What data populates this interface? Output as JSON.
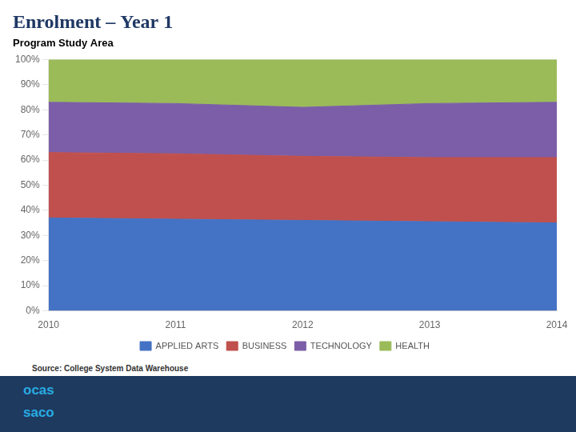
{
  "chart_data": {
    "type": "area",
    "title": "Enrolment – Year 1",
    "subtitle": "Program Study Area",
    "annotations": [
      "Source: College System Data Warehouse",
      "ocas",
      "saco"
    ],
    "x": [
      2010,
      2011,
      2012,
      2013,
      2014
    ],
    "series": [
      {
        "name": "APPLIED ARTS",
        "color": "#4472C4",
        "values": [
          37.0,
          36.5,
          36.0,
          35.5,
          35.0
        ]
      },
      {
        "name": "BUSINESS",
        "color": "#C0504D",
        "values": [
          26.0,
          26.0,
          25.5,
          25.5,
          26.0
        ]
      },
      {
        "name": "TECHNOLOGY",
        "color": "#7B5EA7",
        "values": [
          20.0,
          20.0,
          19.5,
          21.5,
          22.0
        ]
      },
      {
        "name": "HEALTH",
        "color": "#9BBB59",
        "values": [
          17.0,
          17.5,
          19.0,
          17.5,
          17.0
        ]
      }
    ],
    "xlim": [
      2010,
      2014
    ],
    "xticks": [
      2010,
      2011,
      2012,
      2013,
      2014
    ],
    "ylim": [
      0,
      100
    ],
    "yticks": [
      {
        "value": 0,
        "label": "0%"
      },
      {
        "value": 10,
        "label": "10%"
      },
      {
        "value": 20,
        "label": "20%"
      },
      {
        "value": 30,
        "label": "30%"
      },
      {
        "value": 40,
        "label": "40%"
      },
      {
        "value": 50,
        "label": "50%"
      },
      {
        "value": 60,
        "label": "60%"
      },
      {
        "value": 70,
        "label": "70%"
      },
      {
        "value": 80,
        "label": "80%"
      },
      {
        "value": 90,
        "label": "90%"
      },
      {
        "value": 100,
        "label": "100%"
      }
    ],
    "stacked": true,
    "grid": true,
    "legend": "bottom"
  }
}
